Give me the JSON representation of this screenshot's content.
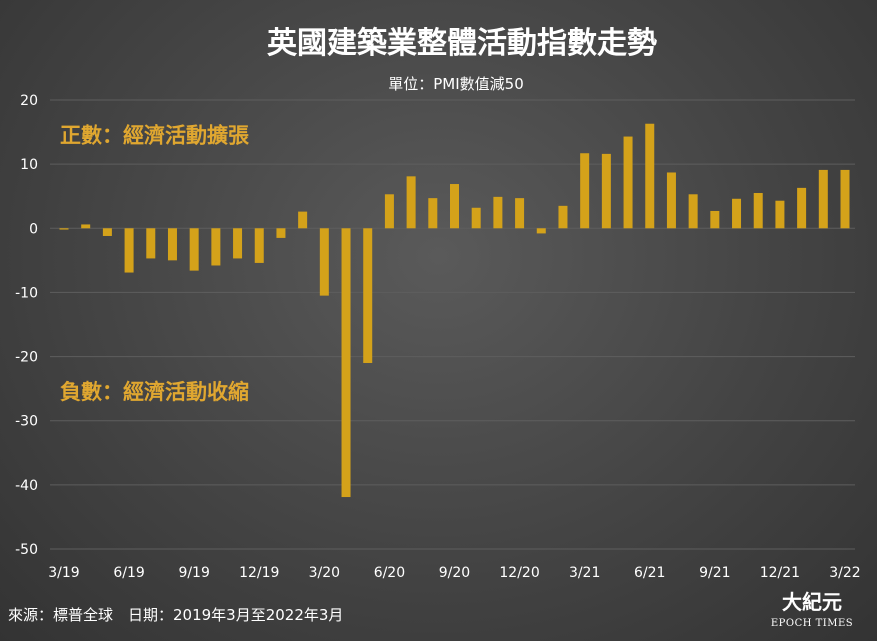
{
  "chart_data": {
    "type": "bar",
    "title": "英國建築業整體活動指數走勢",
    "subtitle": "單位：PMI數值減50",
    "ylim": [
      -50,
      20
    ],
    "yticks": [
      20,
      10,
      0,
      -10,
      -20,
      -30,
      -40,
      -50
    ],
    "x_tick_labels": [
      "3/19",
      "6/19",
      "9/19",
      "12/19",
      "3/20",
      "6/20",
      "9/20",
      "12/20",
      "3/21",
      "6/21",
      "9/21",
      "12/21",
      "3/22"
    ],
    "x_tick_index": [
      0,
      3,
      6,
      9,
      12,
      15,
      18,
      21,
      24,
      27,
      30,
      33,
      36
    ],
    "categories": [
      "2019-03",
      "2019-04",
      "2019-05",
      "2019-06",
      "2019-07",
      "2019-08",
      "2019-09",
      "2019-10",
      "2019-11",
      "2019-12",
      "2020-01",
      "2020-02",
      "2020-03",
      "2020-04",
      "2020-05",
      "2020-06",
      "2020-07",
      "2020-08",
      "2020-09",
      "2020-10",
      "2020-11",
      "2020-12",
      "2021-01",
      "2021-02",
      "2021-03",
      "2021-04",
      "2021-05",
      "2021-06",
      "2021-07",
      "2021-08",
      "2021-09",
      "2021-10",
      "2021-11",
      "2021-12",
      "2022-01",
      "2022-02",
      "2022-03"
    ],
    "values": [
      -0.2,
      0.6,
      -1.2,
      -6.9,
      -4.7,
      -5.0,
      -6.6,
      -5.8,
      -4.7,
      -5.4,
      -1.5,
      2.6,
      -10.5,
      -41.9,
      -21.0,
      5.3,
      8.1,
      4.7,
      6.9,
      3.2,
      4.9,
      4.7,
      -0.8,
      3.5,
      11.7,
      11.6,
      14.3,
      16.3,
      8.7,
      5.3,
      2.7,
      4.6,
      5.5,
      4.3,
      6.3,
      9.1,
      9.1
    ],
    "bar_color": "#d4a21a",
    "annotations": [
      {
        "text": "正數：經濟活動擴張",
        "value": 14.5
      },
      {
        "text": "負數：經濟活動收縮",
        "value": -25.5
      }
    ]
  },
  "footer": {
    "source": "來源：標普全球　日期：2019年3月至2022年3月"
  },
  "logo": {
    "cn": "大紀元",
    "en": "EPOCH TIMES"
  },
  "colors": {
    "annotation": "#e0a730",
    "grid": "#5e5e5e",
    "text": "#ffffff"
  }
}
